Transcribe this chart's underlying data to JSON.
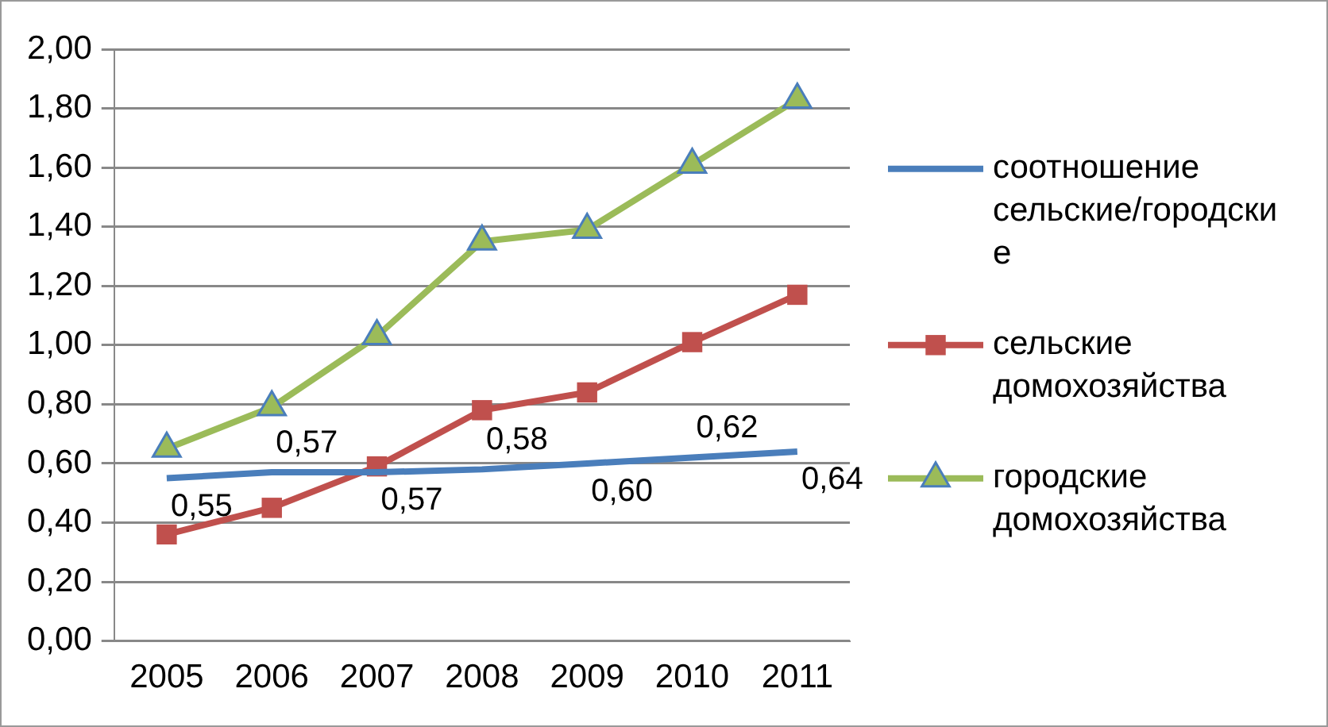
{
  "chart_data": {
    "type": "line",
    "categories": [
      "2005",
      "2006",
      "2007",
      "2008",
      "2009",
      "2010",
      "2011"
    ],
    "series": [
      {
        "name": "соотношение сельские/городские",
        "color": "#4a7ebb",
        "marker": "none",
        "values": [
          0.55,
          0.57,
          0.57,
          0.58,
          0.6,
          0.62,
          0.64
        ],
        "value_labels": [
          "0,55",
          "0,57",
          "0,57",
          "0,58",
          "0,60",
          "0,62",
          "0,64"
        ]
      },
      {
        "name": "сельские домохозяйства",
        "color": "#c0504d",
        "marker": "square",
        "values": [
          0.36,
          0.45,
          0.59,
          0.78,
          0.84,
          1.01,
          1.17
        ]
      },
      {
        "name": "городские домохозяйства",
        "color": "#9bbb59",
        "marker": "triangle",
        "values": [
          0.65,
          0.79,
          1.03,
          1.35,
          1.39,
          1.61,
          1.83
        ]
      }
    ],
    "ylim": [
      0,
      2
    ],
    "yticks": [
      {
        "value": 0,
        "label": "0,00"
      },
      {
        "value": 0.2,
        "label": "0,20"
      },
      {
        "value": 0.4,
        "label": "0,40"
      },
      {
        "value": 0.6,
        "label": "0,60"
      },
      {
        "value": 0.8,
        "label": "0,80"
      },
      {
        "value": 1,
        "label": "1,00"
      },
      {
        "value": 1.2,
        "label": "1,20"
      },
      {
        "value": 1.4,
        "label": "1,40"
      },
      {
        "value": 1.6,
        "label": "1,60"
      },
      {
        "value": 1.8,
        "label": "1,80"
      },
      {
        "value": 2,
        "label": "2,00"
      }
    ],
    "grid": "y",
    "legend": "right"
  }
}
